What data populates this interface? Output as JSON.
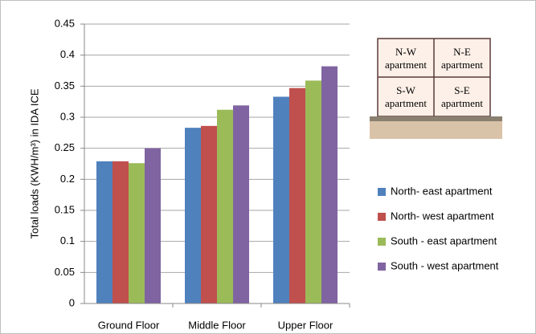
{
  "chart_data": {
    "type": "bar",
    "y_label": "Total loads (KWH/m³) in IDA ICE",
    "categories": [
      "Ground Floor",
      "Middle Floor",
      "Upper Floor"
    ],
    "series": [
      {
        "name": "North- east apartment",
        "color": "#4f81bd",
        "values": [
          0.229,
          0.283,
          0.333
        ]
      },
      {
        "name": "North- west apartment",
        "color": "#c0504d",
        "values": [
          0.229,
          0.286,
          0.347
        ]
      },
      {
        "name": "South - east apartment",
        "color": "#9bbb59",
        "values": [
          0.226,
          0.312,
          0.359
        ]
      },
      {
        "name": "South - west apartment",
        "color": "#8064a2",
        "values": [
          0.25,
          0.319,
          0.382
        ]
      }
    ],
    "ylim": [
      0,
      0.45
    ],
    "yticks": [
      0,
      0.05,
      0.1,
      0.15,
      0.2,
      0.25,
      0.3,
      0.35,
      0.4,
      0.45
    ],
    "grid": true,
    "legend": "right",
    "diagram": {
      "cells": [
        {
          "label": "N-W",
          "sublabel": "apartment"
        },
        {
          "label": "N-E",
          "sublabel": "apartment"
        },
        {
          "label": "S-W",
          "sublabel": "apartment"
        },
        {
          "label": "S-E",
          "sublabel": "apartment"
        }
      ]
    }
  }
}
